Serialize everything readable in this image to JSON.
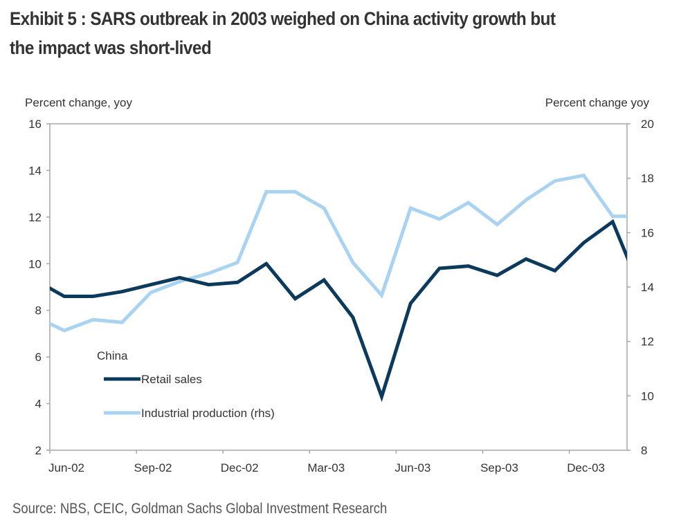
{
  "title": "Exhibit 5 : SARS outbreak in 2003 weighed on China activity growth but the impact was short-lived",
  "title_lines": [
    "Exhibit 5 : SARS outbreak in 2003 weighed on China activity growth but",
    "the impact was short-lived"
  ],
  "source": "Source: NBS, CEIC, Goldman Sachs Global Investment Research",
  "colors": {
    "retail_sales": "#0b3a5d",
    "industrial_production": "#a9d3f0",
    "axis": "#a6a6a6",
    "text": "#333333"
  },
  "chart_data": {
    "type": "line",
    "title": "SARS outbreak in 2003 weighed on China activity growth but the impact was short-lived",
    "ylabel": "Percent change, yoy",
    "ylabel_right": "Percent change yoy",
    "ylim": [
      2,
      16
    ],
    "ylim_right": [
      8,
      20
    ],
    "yticks": [
      "2",
      "4",
      "6",
      "8",
      "10",
      "12",
      "14",
      "16"
    ],
    "yticks_values": [
      2,
      4,
      6,
      8,
      10,
      12,
      14,
      16
    ],
    "yticks_right": [
      "8",
      "10",
      "12",
      "14",
      "16",
      "18",
      "20"
    ],
    "yticks_right_values": [
      8,
      10,
      12,
      14,
      16,
      18,
      20
    ],
    "xticks": [
      "Jun-02",
      "Sep-02",
      "Dec-02",
      "Mar-03",
      "Jun-03",
      "Sep-03",
      "Dec-03"
    ],
    "x": [
      "May-02",
      "Jun-02",
      "Jul-02",
      "Aug-02",
      "Sep-02",
      "Oct-02",
      "Nov-02",
      "Dec-02",
      "Jan-03",
      "Feb-03",
      "Mar-03",
      "Apr-03",
      "May-03",
      "Jun-03",
      "Jul-03",
      "Aug-03",
      "Sep-03",
      "Oct-03",
      "Nov-03",
      "Dec-03",
      "Jan-04",
      "Feb-04"
    ],
    "grid": false,
    "legend": {
      "title": "China",
      "placement": "bottom-left",
      "entries": [
        "Retail sales",
        "Industrial production (rhs)"
      ]
    },
    "series": [
      {
        "name": "Retail sales",
        "axis": "left",
        "values": [
          9.3,
          8.6,
          8.6,
          8.8,
          9.1,
          9.4,
          9.1,
          9.2,
          10.0,
          8.5,
          9.3,
          7.7,
          4.3,
          8.3,
          9.8,
          9.9,
          9.5,
          10.2,
          9.7,
          10.9,
          11.8,
          8.8
        ]
      },
      {
        "name": "Industrial production (rhs)",
        "axis": "right",
        "values": [
          12.9,
          12.4,
          12.8,
          12.7,
          13.8,
          14.2,
          14.5,
          14.9,
          17.5,
          17.5,
          16.9,
          14.9,
          13.7,
          16.9,
          16.5,
          17.1,
          16.3,
          17.2,
          17.9,
          18.1,
          16.6,
          16.6
        ]
      }
    ]
  }
}
